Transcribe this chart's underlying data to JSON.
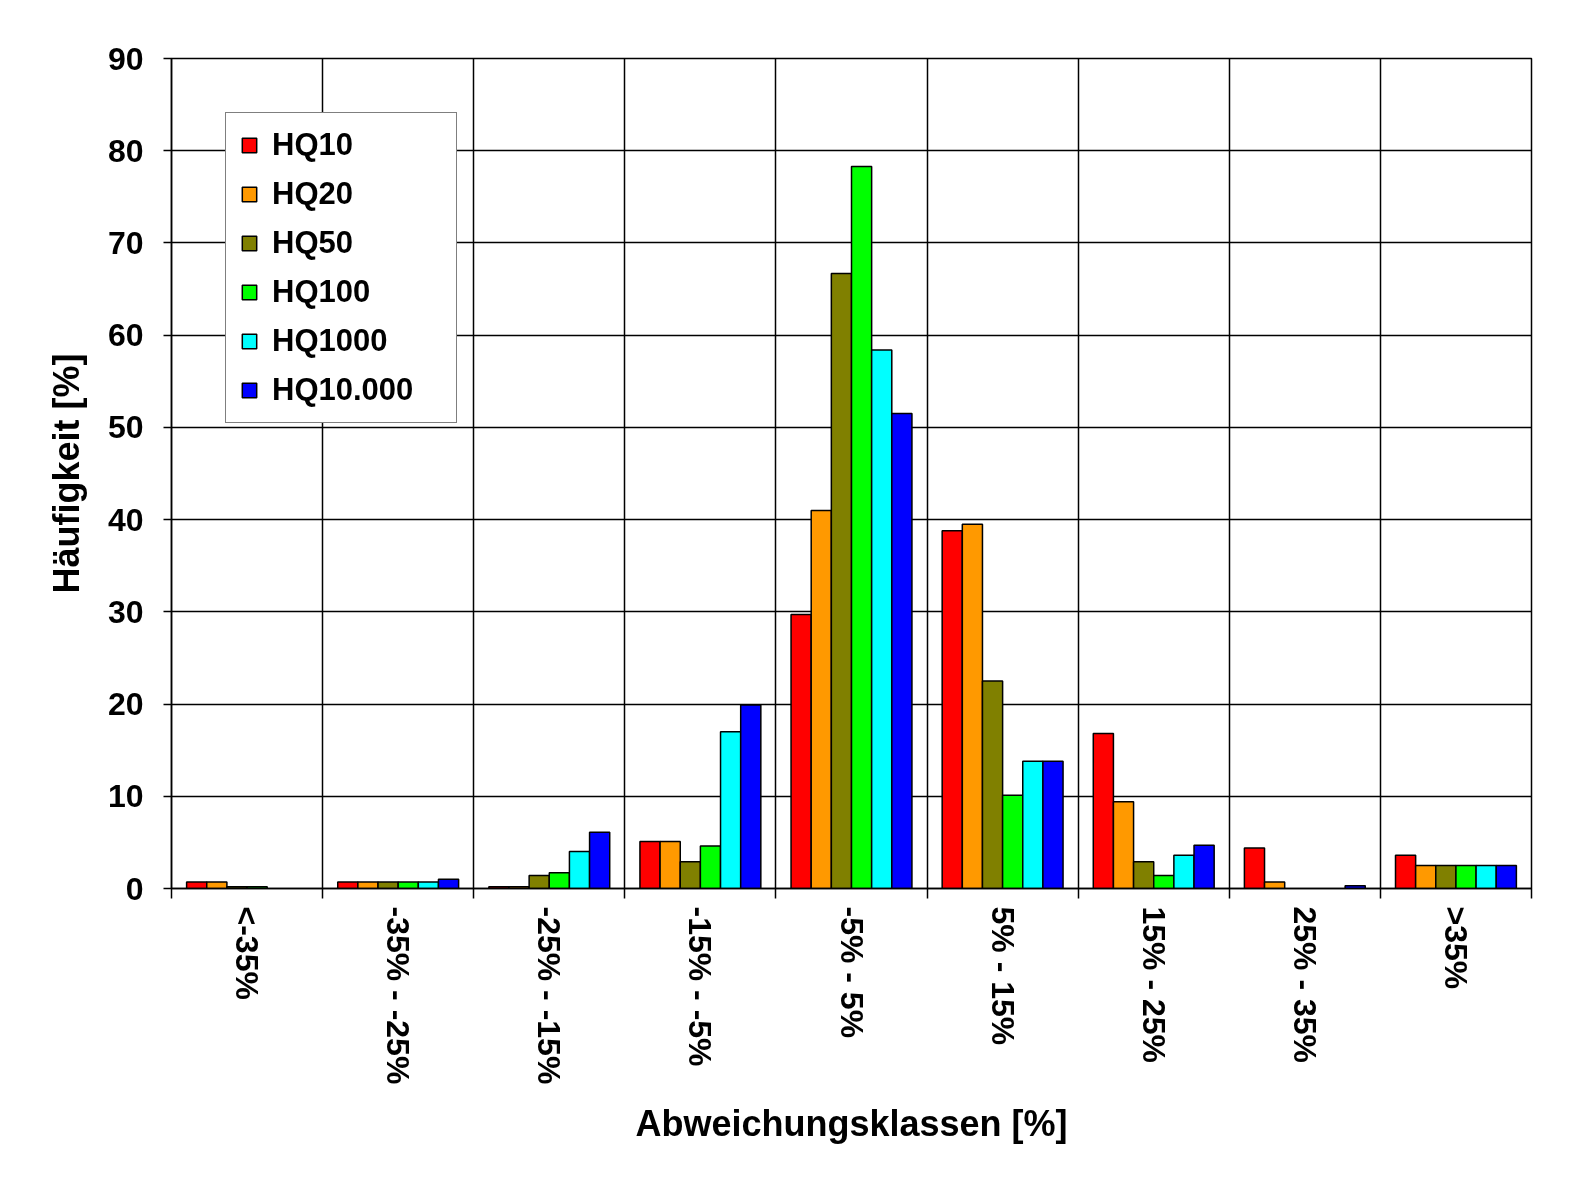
{
  "chart_data": {
    "type": "bar",
    "xlabel": "Abweichungsklassen [%]",
    "ylabel": "Häufigkeit [%]",
    "categories": [
      "<-35%",
      "-35% - -25%",
      "-25% - -15%",
      "-15% - -5%",
      "-5% - 5%",
      "5% - 15%",
      "15% - 25%",
      "25% - 35%",
      ">35%"
    ],
    "ylim": [
      0,
      90
    ],
    "yticks": [
      0,
      10,
      20,
      30,
      40,
      50,
      60,
      70,
      80,
      90
    ],
    "grid": true,
    "legend": "top left",
    "series": [
      {
        "name": "HQ10",
        "color": "#ff0000",
        "values": [
          0.7,
          0.7,
          0.2,
          5.1,
          29.7,
          38.8,
          16.8,
          4.4,
          3.6
        ]
      },
      {
        "name": "HQ20",
        "color": "#ff9900",
        "values": [
          0.7,
          0.7,
          0.2,
          5.1,
          41.0,
          39.5,
          9.4,
          0.7,
          2.5
        ]
      },
      {
        "name": "HQ50",
        "color": "#808000",
        "values": [
          0.2,
          0.7,
          1.4,
          2.9,
          66.7,
          22.5,
          2.9,
          null,
          2.5
        ]
      },
      {
        "name": "HQ100",
        "color": "#00ff00",
        "values": [
          0.2,
          0.7,
          1.7,
          4.6,
          78.3,
          10.1,
          1.4,
          null,
          2.5
        ]
      },
      {
        "name": "HQ1000",
        "color": "#00ffff",
        "values": [
          null,
          0.7,
          4.0,
          17.0,
          58.4,
          13.8,
          3.6,
          null,
          2.5
        ]
      },
      {
        "name": "HQ10.000",
        "color": "#0000ff",
        "values": [
          null,
          1.0,
          6.1,
          19.9,
          51.5,
          13.8,
          4.7,
          0.3,
          2.5
        ]
      }
    ]
  }
}
